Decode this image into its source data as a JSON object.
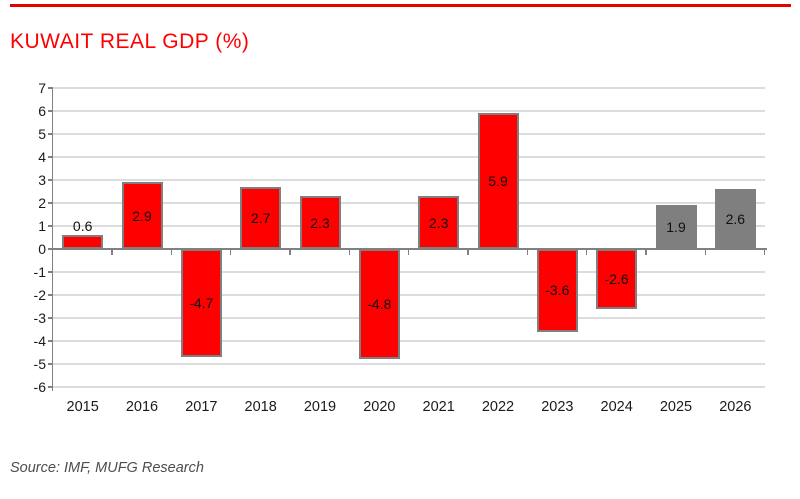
{
  "page": {
    "title": "KUWAIT REAL GDP (%)",
    "title_color": "#fe0000",
    "rule_color": "#e60000",
    "source": "Source: IMF, MUFG Research"
  },
  "chart_data": {
    "type": "bar",
    "title": "KUWAIT REAL GDP (%)",
    "categories": [
      "2015",
      "2016",
      "2017",
      "2018",
      "2019",
      "2020",
      "2021",
      "2022",
      "2023",
      "2024",
      "2025",
      "2026"
    ],
    "values": [
      0.6,
      2.9,
      -4.7,
      2.7,
      2.3,
      -4.8,
      2.3,
      5.9,
      -3.6,
      -2.6,
      1.9,
      2.6
    ],
    "forecast_flags": [
      false,
      false,
      false,
      false,
      false,
      false,
      false,
      false,
      false,
      false,
      true,
      true
    ],
    "data_labels": [
      "0.6",
      "2.9",
      "-4.7",
      "2.7",
      "2.3",
      "-4.8",
      "2.3",
      "5.9",
      "-3.6",
      "-2.6",
      "1.9",
      "2.6"
    ],
    "bar_color": "#fe0000",
    "forecast_bar_color": "#7f7f7f",
    "bar_border_color": "#7f7f7f",
    "gridline_color": "#dcdcdc",
    "axis_color": "#808080",
    "label_color": "#101010",
    "ylim": [
      -6,
      7
    ],
    "yticks": [
      7,
      6,
      5,
      4,
      3,
      2,
      1,
      0,
      -1,
      -2,
      -3,
      -4,
      -5,
      -6
    ],
    "grid": true,
    "legend": "none",
    "xlabel": "",
    "ylabel": ""
  }
}
